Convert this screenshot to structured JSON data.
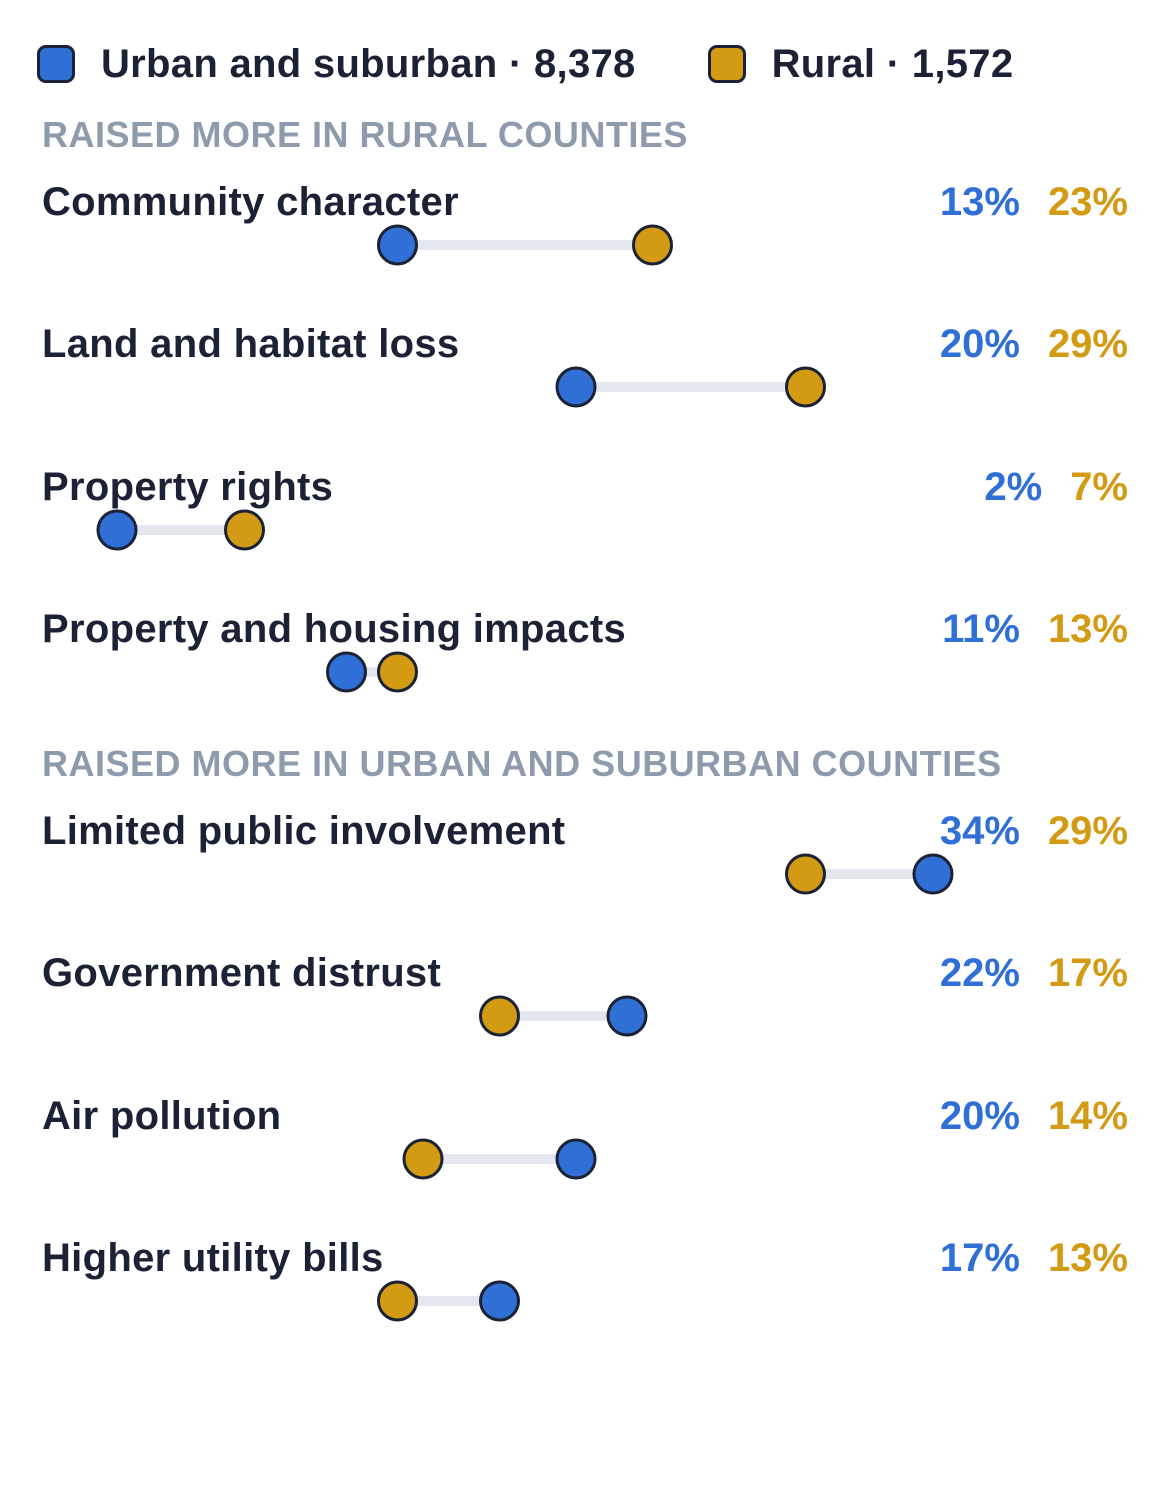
{
  "colors": {
    "urban": "#2f6fd6",
    "rural": "#d39a13",
    "connector": "#e4e7ee",
    "outline": "#1b2235",
    "heading": "#8e9bad"
  },
  "chart_data": {
    "type": "dumbbell",
    "legend": [
      {
        "key": "urban",
        "label": "Urban and suburban · 8,378"
      },
      {
        "key": "rural",
        "label": "Rural · 1,572"
      }
    ],
    "sections": [
      {
        "heading": "RAISED MORE IN RURAL COUNTIES",
        "rows": [
          {
            "label": "Community character",
            "urban": 13,
            "rural": 23,
            "urban_text": "13%",
            "rural_text": "23%"
          },
          {
            "label": "Land and habitat loss",
            "urban": 20,
            "rural": 29,
            "urban_text": "20%",
            "rural_text": "29%"
          },
          {
            "label": "Property rights",
            "urban": 2,
            "rural": 7,
            "urban_text": "2%",
            "rural_text": "7%"
          },
          {
            "label": "Property and housing impacts",
            "urban": 11,
            "rural": 13,
            "urban_text": "11%",
            "rural_text": "13%"
          }
        ]
      },
      {
        "heading": "RAISED MORE IN URBAN AND SUBURBAN COUNTIES",
        "rows": [
          {
            "label": "Limited public involvement",
            "urban": 34,
            "rural": 29,
            "urban_text": "34%",
            "rural_text": "29%"
          },
          {
            "label": "Government distrust",
            "urban": 22,
            "rural": 17,
            "urban_text": "22%",
            "rural_text": "17%"
          },
          {
            "label": "Air pollution",
            "urban": 20,
            "rural": 14,
            "urban_text": "20%",
            "rural_text": "14%"
          },
          {
            "label": "Higher utility bills",
            "urban": 17,
            "rural": 13,
            "urban_text": "17%",
            "rural_text": "13%"
          }
        ]
      }
    ]
  }
}
